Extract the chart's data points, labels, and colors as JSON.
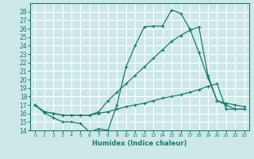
{
  "xlabel": "Humidex (Indice chaleur)",
  "ylabel": "",
  "bg_color": "#cde8e8",
  "grid_color": "#ffffff",
  "line_color": "#1a7a6e",
  "xlim": [
    -0.5,
    23.5
  ],
  "ylim": [
    14,
    29
  ],
  "yticks": [
    14,
    15,
    16,
    17,
    18,
    19,
    20,
    21,
    22,
    23,
    24,
    25,
    26,
    27,
    28
  ],
  "xticks": [
    0,
    1,
    2,
    3,
    4,
    5,
    6,
    7,
    8,
    9,
    10,
    11,
    12,
    13,
    14,
    15,
    16,
    17,
    18,
    19,
    20,
    21,
    22,
    23
  ],
  "line1_x": [
    0,
    1,
    2,
    3,
    4,
    5,
    6,
    7,
    8,
    9,
    10,
    11,
    12,
    13,
    14,
    15,
    16,
    17,
    18,
    19,
    20,
    21,
    22,
    23
  ],
  "line1_y": [
    17.0,
    16.1,
    15.5,
    15.0,
    15.0,
    14.8,
    13.8,
    14.2,
    14.0,
    17.0,
    21.5,
    24.0,
    26.2,
    26.3,
    26.3,
    28.2,
    27.8,
    26.0,
    23.2,
    20.2,
    17.5,
    17.0,
    16.5,
    16.5
  ],
  "line2_x": [
    0,
    1,
    2,
    3,
    4,
    5,
    6,
    7,
    8,
    9,
    10,
    11,
    12,
    13,
    14,
    15,
    16,
    17,
    18,
    19,
    20,
    21,
    22,
    23
  ],
  "line2_y": [
    17.0,
    16.2,
    16.0,
    15.8,
    15.8,
    15.8,
    15.8,
    16.2,
    17.5,
    18.5,
    19.5,
    20.5,
    21.5,
    22.5,
    23.5,
    24.5,
    25.2,
    25.8,
    26.2,
    20.5,
    17.5,
    17.2,
    17.0,
    16.8
  ],
  "line3_x": [
    0,
    1,
    2,
    3,
    4,
    5,
    6,
    7,
    8,
    9,
    10,
    11,
    12,
    13,
    14,
    15,
    16,
    17,
    18,
    19,
    20,
    21,
    22,
    23
  ],
  "line3_y": [
    17.0,
    16.2,
    16.0,
    15.8,
    15.8,
    15.8,
    15.8,
    16.0,
    16.2,
    16.5,
    16.8,
    17.0,
    17.2,
    17.5,
    17.8,
    18.0,
    18.2,
    18.5,
    18.8,
    19.2,
    19.5,
    16.5,
    16.5,
    16.5
  ]
}
